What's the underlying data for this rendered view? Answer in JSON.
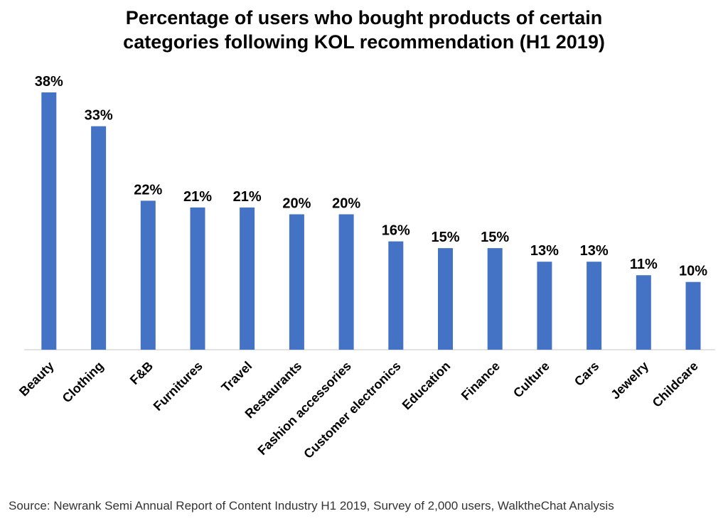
{
  "chart_data": {
    "type": "bar",
    "title_lines": [
      "Percentage of users who bought products of certain",
      "categories following KOL recommendation (H1 2019)"
    ],
    "categories": [
      "Beauty",
      "Clothing",
      "F&B",
      "Furnitures",
      "Travel",
      "Restaurants",
      "Fashion accessories",
      "Customer electronics",
      "Education",
      "Finance",
      "Culture",
      "Cars",
      "Jewelry",
      "Childcare"
    ],
    "values": [
      38,
      33,
      22,
      21,
      21,
      20,
      20,
      16,
      15,
      15,
      13,
      13,
      11,
      10
    ],
    "value_suffix": "%",
    "ylim": [
      0,
      38
    ],
    "grid": false,
    "legend": "none",
    "bar_color": "#4472c4"
  },
  "footer": {
    "source": "Source: Newrank Semi Annual Report of Content Industry H1 2019, Survey of 2,000 users, WalktheChat Analysis"
  }
}
